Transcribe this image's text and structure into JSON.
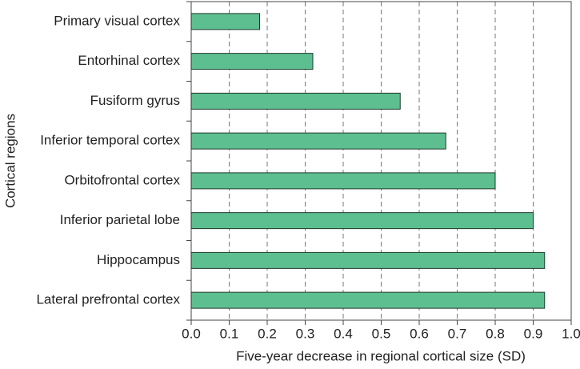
{
  "chart_data": {
    "type": "hbar",
    "xlabel": "Five-year decrease in regional cortical size (SD)",
    "ylabel": "Cortical regions",
    "categories": [
      "Primary visual cortex",
      "Entorhinal cortex",
      "Fusiform gyrus",
      "Inferior temporal cortex",
      "Orbitofrontal cortex",
      "Inferior parietal lobe",
      "Hippocampus",
      "Lateral prefrontal cortex"
    ],
    "values": [
      0.18,
      0.32,
      0.55,
      0.67,
      0.8,
      0.9,
      0.93,
      0.93
    ],
    "color": "#5dbf8f",
    "xlim": [
      0,
      1
    ],
    "xticks": [
      {
        "value": 0,
        "label": "0.0"
      },
      0.1,
      0.2,
      0.3,
      0.4,
      0.5,
      0.6,
      0.7,
      0.8,
      0.9,
      {
        "value": 1,
        "label": "1.0"
      }
    ],
    "grid": true
  }
}
